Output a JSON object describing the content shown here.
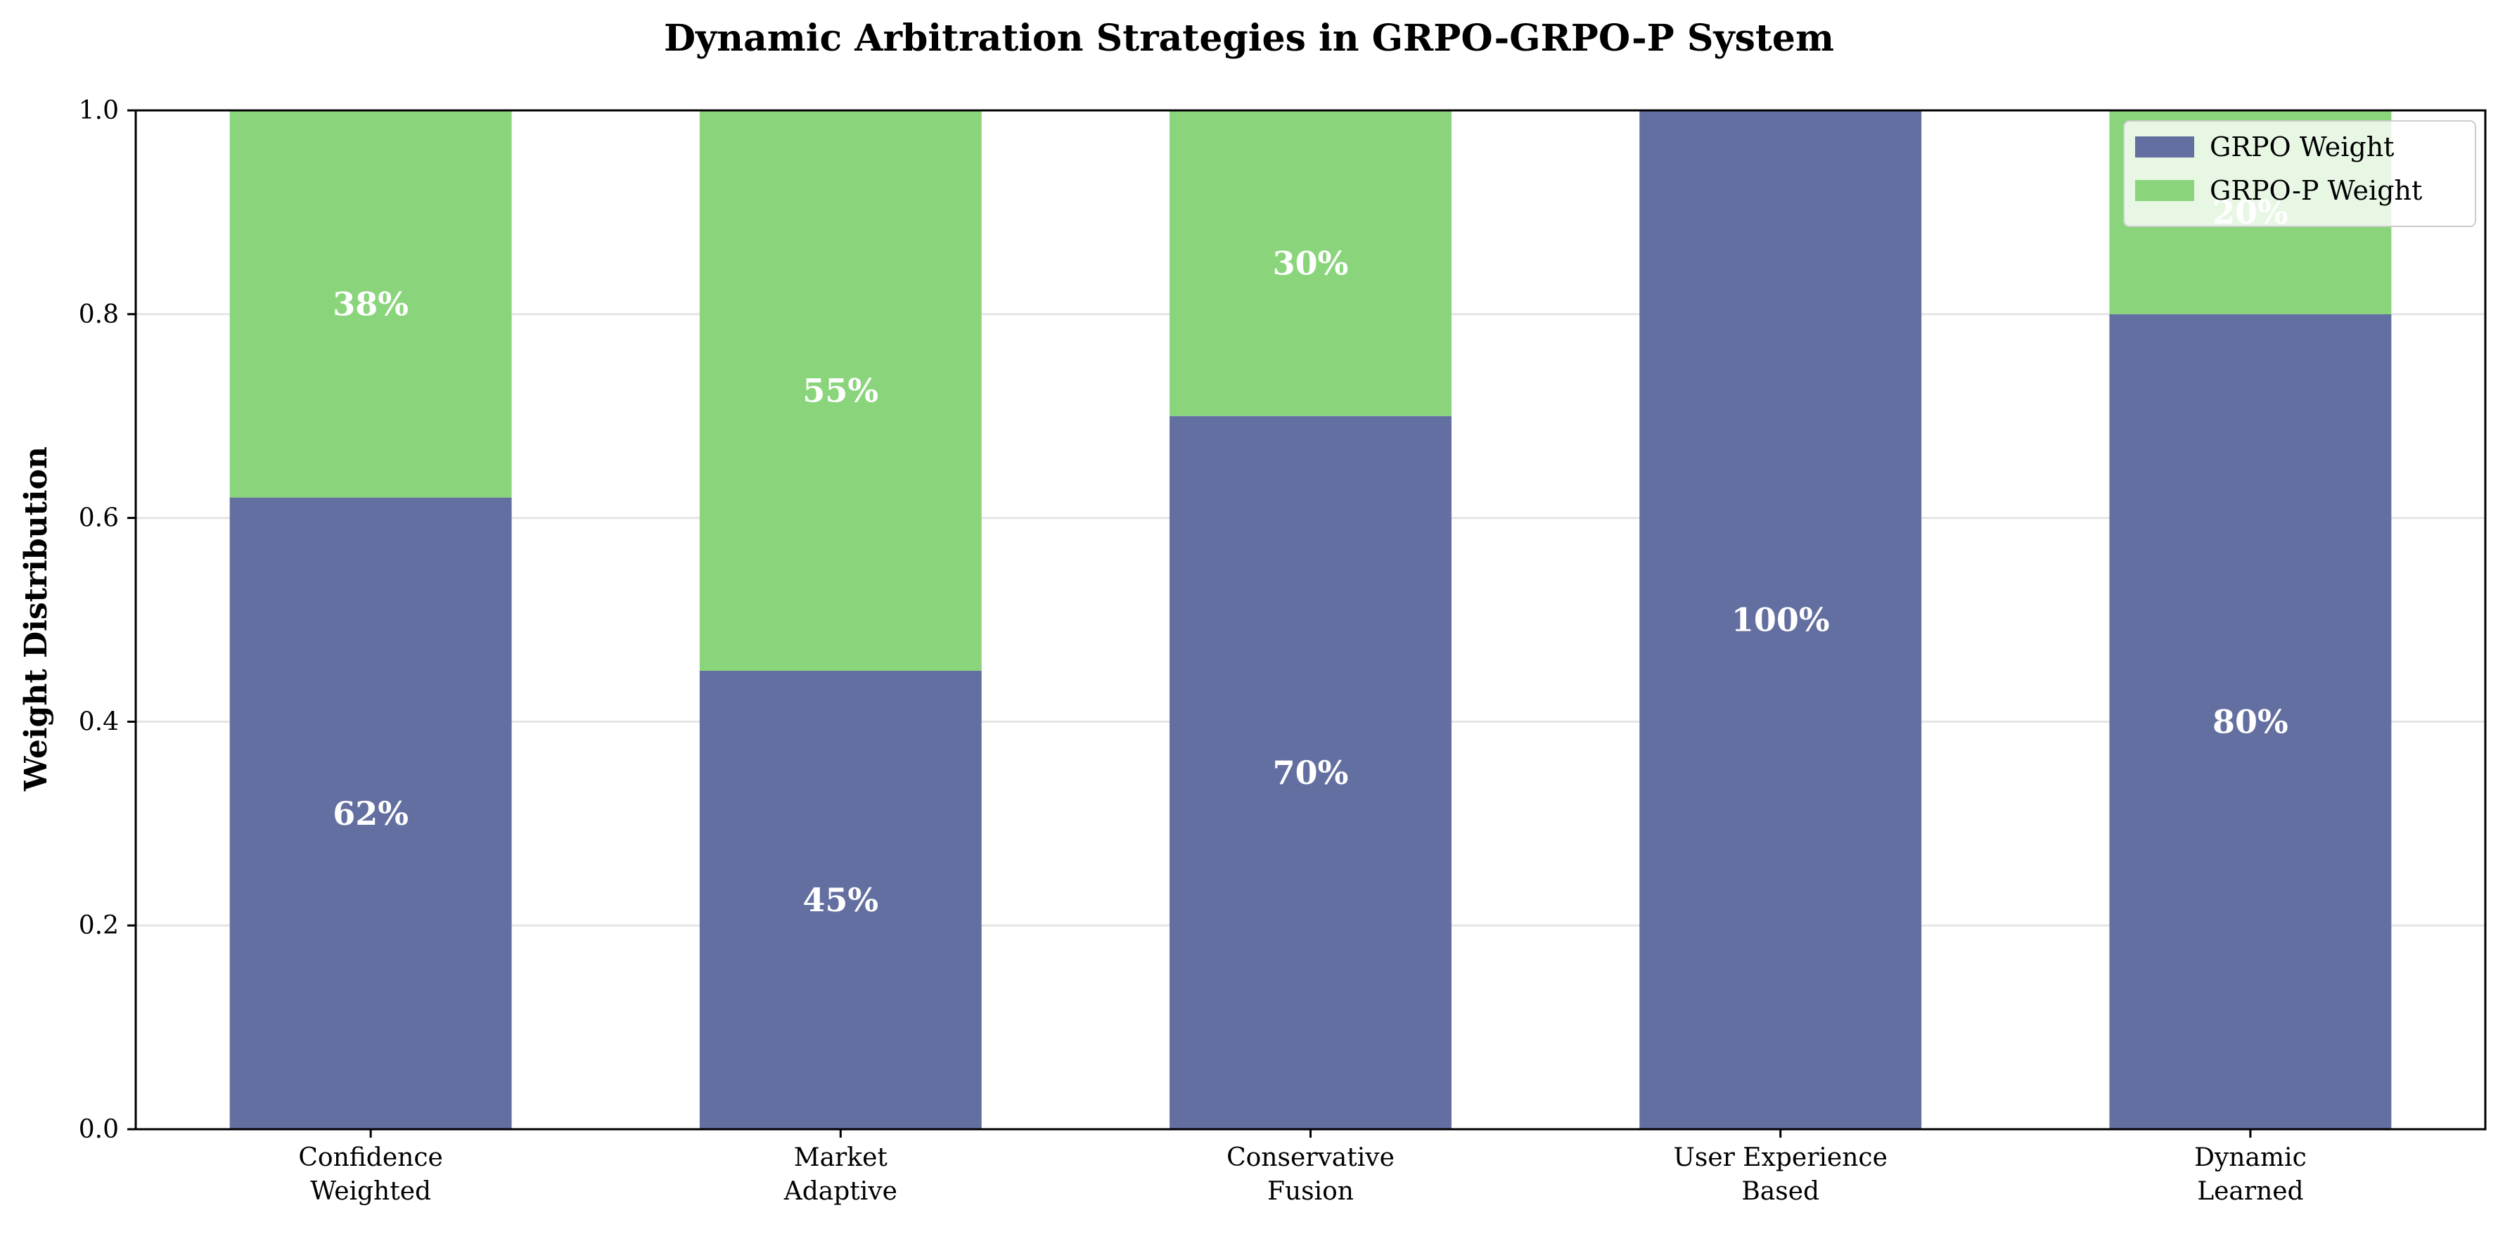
{
  "colors": {
    "grpo": "#646fa1",
    "grpo_p": "#8ad57b",
    "grid": "#e5e5e5"
  },
  "chart_data": {
    "type": "bar",
    "stacked": true,
    "title": "Dynamic Arbitration Strategies in GRPO-GRPO-P System",
    "xlabel": "",
    "ylabel": "Weight Distribution",
    "ylim": [
      0,
      1.0
    ],
    "yticks": [
      "0.0",
      "0.2",
      "0.4",
      "0.6",
      "0.8",
      "1.0"
    ],
    "grid": "y",
    "legend_position": "top-right",
    "categories": [
      [
        "Confidence",
        "Weighted"
      ],
      [
        "Market",
        "Adaptive"
      ],
      [
        "Conservative",
        "Fusion"
      ],
      [
        "User Experience",
        "Based"
      ],
      [
        "Dynamic",
        "Learned"
      ]
    ],
    "series": [
      {
        "name": "GRPO Weight",
        "values": [
          0.62,
          0.45,
          0.7,
          1.0,
          0.8
        ],
        "labels": [
          "62%",
          "45%",
          "70%",
          "100%",
          "80%"
        ]
      },
      {
        "name": "GRPO-P Weight",
        "values": [
          0.38,
          0.55,
          0.3,
          0.0,
          0.2
        ],
        "labels": [
          "38%",
          "55%",
          "30%",
          "",
          "20%"
        ]
      }
    ]
  }
}
